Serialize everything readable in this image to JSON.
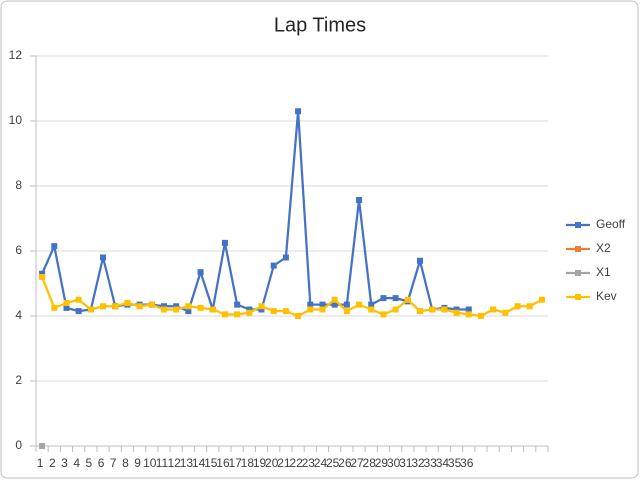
{
  "chart_data": {
    "type": "line",
    "title": "Lap Times",
    "categories": [
      "1",
      "2",
      "3",
      "4",
      "5",
      "6",
      "7",
      "8",
      "9",
      "10",
      "11",
      "12",
      "13",
      "14",
      "15",
      "16",
      "17",
      "18",
      "19",
      "20",
      "21",
      "22",
      "23",
      "24",
      "25",
      "26",
      "27",
      "28",
      "29",
      "30",
      "31",
      "32",
      "33",
      "34",
      "35",
      "36",
      null,
      null,
      null,
      null,
      null,
      null
    ],
    "series": [
      {
        "name": "Geoff",
        "color": "#4472c4",
        "values": [
          5.3,
          6.15,
          4.25,
          4.15,
          4.2,
          5.8,
          4.3,
          4.35,
          4.35,
          4.35,
          4.3,
          4.3,
          4.15,
          5.35,
          4.2,
          6.25,
          4.35,
          4.2,
          4.2,
          5.55,
          5.8,
          10.3,
          4.35,
          4.35,
          4.35,
          4.35,
          7.57,
          4.35,
          4.55,
          4.55,
          4.45,
          5.7,
          4.2,
          4.25,
          4.2,
          4.2,
          null,
          null,
          null,
          null,
          null,
          null
        ]
      },
      {
        "name": "X2",
        "color": "#ed7d31",
        "values": [
          null,
          null,
          null,
          null,
          null,
          null,
          null,
          null,
          null,
          null,
          null,
          null,
          null,
          null,
          null,
          null,
          null,
          null,
          null,
          null,
          null,
          null,
          null,
          null,
          null,
          null,
          null,
          null,
          null,
          null,
          null,
          null,
          null,
          null,
          null,
          null,
          null,
          null,
          null,
          null,
          null,
          null
        ]
      },
      {
        "name": "X1",
        "color": "#a5a5a5",
        "values": [
          0,
          null,
          null,
          null,
          null,
          null,
          null,
          null,
          null,
          null,
          null,
          null,
          null,
          null,
          null,
          null,
          null,
          null,
          null,
          null,
          null,
          null,
          null,
          null,
          null,
          null,
          null,
          null,
          null,
          null,
          null,
          null,
          null,
          null,
          null,
          null,
          null,
          null,
          null,
          null,
          null,
          null
        ]
      },
      {
        "name": "Kev",
        "color": "#ffc000",
        "values": [
          5.2,
          4.25,
          4.4,
          4.5,
          4.2,
          4.3,
          4.3,
          4.4,
          4.3,
          4.35,
          4.2,
          4.2,
          4.3,
          4.25,
          4.2,
          4.05,
          4.05,
          4.1,
          4.3,
          4.15,
          4.15,
          4.0,
          4.2,
          4.2,
          4.5,
          4.15,
          4.35,
          4.2,
          4.05,
          4.2,
          4.5,
          4.15,
          4.2,
          4.2,
          4.1,
          4.05,
          4.0,
          4.2,
          4.1,
          4.3,
          4.3,
          4.5
        ]
      }
    ],
    "ylim": [
      0,
      12
    ],
    "yticks": [
      0,
      2,
      4,
      6,
      8,
      10,
      12
    ],
    "grid": true,
    "legend": "right"
  }
}
